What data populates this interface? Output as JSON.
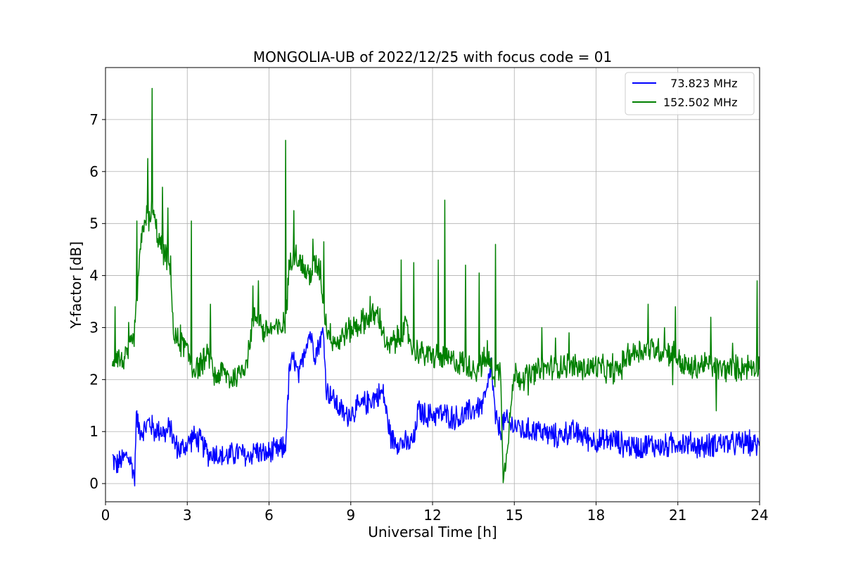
{
  "chart_data": {
    "type": "line",
    "title": "MONGOLIA-UB of 2022/12/25 with focus code = 01",
    "xlabel": "Universal Time [h]",
    "ylabel": "Y-factor [dB]",
    "xlim": [
      0,
      24
    ],
    "ylim": [
      -0.35,
      8.0
    ],
    "xticks": [
      0,
      3,
      6,
      9,
      12,
      15,
      18,
      21,
      24
    ],
    "yticks": [
      0,
      1,
      2,
      3,
      4,
      5,
      6,
      7
    ],
    "grid": true,
    "legend_position": "top-right",
    "series": [
      {
        "name": "  73.823 MHz",
        "color": "#0000ff",
        "x": [
          0.25,
          0.4,
          0.6,
          0.8,
          1.0,
          1.08,
          1.12,
          1.2,
          1.4,
          1.6,
          1.8,
          2.0,
          2.2,
          2.4,
          2.5,
          2.7,
          2.9,
          3.0,
          3.2,
          3.5,
          3.8,
          4.0,
          4.3,
          4.6,
          4.9,
          5.2,
          5.5,
          5.8,
          6.1,
          6.4,
          6.6,
          6.75,
          6.9,
          7.1,
          7.3,
          7.5,
          7.7,
          7.9,
          8.0,
          8.1,
          8.3,
          8.5,
          8.8,
          9.1,
          9.4,
          9.7,
          10.0,
          10.2,
          10.35,
          10.5,
          10.8,
          11.1,
          11.35,
          11.45,
          11.8,
          12.2,
          12.6,
          13.0,
          13.4,
          13.8,
          14.0,
          14.15,
          14.3,
          14.5,
          14.6,
          14.8,
          15.1,
          15.4,
          15.8,
          16.2,
          16.6,
          17.0,
          17.4,
          17.8,
          18.2,
          18.6,
          19.0,
          19.5,
          20.0,
          20.5,
          21.0,
          21.5,
          22.0,
          22.5,
          23.0,
          23.5,
          24.0
        ],
        "values": [
          0.5,
          0.35,
          0.45,
          0.55,
          0.3,
          0.05,
          1.35,
          1.1,
          1.0,
          1.2,
          1.0,
          1.05,
          0.95,
          1.1,
          0.8,
          0.65,
          0.7,
          0.75,
          0.9,
          0.8,
          0.55,
          0.6,
          0.5,
          0.55,
          0.6,
          0.5,
          0.65,
          0.55,
          0.6,
          0.65,
          0.7,
          2.2,
          2.4,
          2.0,
          2.6,
          2.9,
          2.5,
          2.8,
          2.9,
          1.8,
          1.7,
          1.5,
          1.3,
          1.4,
          1.5,
          1.6,
          1.7,
          1.75,
          1.2,
          0.85,
          0.8,
          0.75,
          0.85,
          1.4,
          1.3,
          1.35,
          1.3,
          1.25,
          1.4,
          1.5,
          1.75,
          2.3,
          1.25,
          1.0,
          1.2,
          1.15,
          1.1,
          1.0,
          1.05,
          0.95,
          0.9,
          1.0,
          0.95,
          0.85,
          0.8,
          0.85,
          0.75,
          0.7,
          0.75,
          0.7,
          0.8,
          0.75,
          0.7,
          0.8,
          0.75,
          0.8,
          0.7
        ]
      },
      {
        "name": "152.502 MHz",
        "color": "#008000",
        "x": [
          0.25,
          0.4,
          0.6,
          0.8,
          1.0,
          1.1,
          1.2,
          1.35,
          1.5,
          1.65,
          1.7,
          1.85,
          2.0,
          2.2,
          2.4,
          2.5,
          2.7,
          2.9,
          3.0,
          3.2,
          3.5,
          3.8,
          4.0,
          4.3,
          4.6,
          4.9,
          5.2,
          5.4,
          5.6,
          5.8,
          6.1,
          6.4,
          6.6,
          6.75,
          6.9,
          7.1,
          7.3,
          7.5,
          7.7,
          7.9,
          8.0,
          8.2,
          8.5,
          8.8,
          9.1,
          9.4,
          9.7,
          10.0,
          10.2,
          10.35,
          10.5,
          10.8,
          11.0,
          11.3,
          11.6,
          12.0,
          12.4,
          12.8,
          13.2,
          13.6,
          14.0,
          14.3,
          14.5,
          14.6,
          15.0,
          15.5,
          16.0,
          16.5,
          17.0,
          17.5,
          18.0,
          18.5,
          18.9,
          19.1,
          19.5,
          20.0,
          20.5,
          20.9,
          21.1,
          21.5,
          22.0,
          22.5,
          23.0,
          23.5,
          24.0
        ],
        "values": [
          2.4,
          2.5,
          2.35,
          2.45,
          2.7,
          3.1,
          4.0,
          4.8,
          5.2,
          5.0,
          5.3,
          4.9,
          4.6,
          4.4,
          4.1,
          2.8,
          2.7,
          2.65,
          2.55,
          2.2,
          2.3,
          2.45,
          2.05,
          2.15,
          2.0,
          2.1,
          2.4,
          3.1,
          3.3,
          2.9,
          3.0,
          2.95,
          3.1,
          4.2,
          4.5,
          4.3,
          4.1,
          4.0,
          4.2,
          4.1,
          3.3,
          2.9,
          2.7,
          2.9,
          3.0,
          3.1,
          3.2,
          3.25,
          2.9,
          2.55,
          2.7,
          2.8,
          3.0,
          2.6,
          2.5,
          2.45,
          2.4,
          2.35,
          2.3,
          2.2,
          2.4,
          2.1,
          2.2,
          0.05,
          2.1,
          2.05,
          2.2,
          2.25,
          2.3,
          2.2,
          2.25,
          2.15,
          2.2,
          2.45,
          2.55,
          2.6,
          2.55,
          2.5,
          2.3,
          2.2,
          2.3,
          2.2,
          2.2,
          2.25,
          2.3
        ],
        "spikes": [
          [
            0.35,
            3.4
          ],
          [
            0.85,
            3.1
          ],
          [
            1.15,
            5.05
          ],
          [
            1.55,
            6.25
          ],
          [
            1.72,
            7.6
          ],
          [
            2.1,
            5.7
          ],
          [
            2.3,
            5.3
          ],
          [
            2.75,
            3.05
          ],
          [
            3.15,
            5.05
          ],
          [
            3.85,
            3.45
          ],
          [
            5.4,
            3.8
          ],
          [
            5.6,
            3.9
          ],
          [
            6.6,
            6.6
          ],
          [
            6.9,
            5.25
          ],
          [
            7.6,
            4.7
          ],
          [
            8.0,
            4.65
          ],
          [
            9.7,
            3.6
          ],
          [
            10.85,
            4.3
          ],
          [
            11.3,
            4.25
          ],
          [
            12.2,
            4.3
          ],
          [
            12.45,
            5.45
          ],
          [
            13.2,
            4.2
          ],
          [
            13.7,
            4.05
          ],
          [
            14.0,
            2.75
          ],
          [
            14.3,
            4.6
          ],
          [
            15.5,
            2.5
          ],
          [
            16.0,
            3.0
          ],
          [
            16.5,
            2.8
          ],
          [
            17.0,
            2.9
          ],
          [
            18.6,
            2.5
          ],
          [
            19.9,
            3.45
          ],
          [
            20.5,
            3.0
          ],
          [
            20.9,
            3.4
          ],
          [
            22.2,
            3.2
          ],
          [
            23.0,
            2.7
          ],
          [
            23.9,
            3.9
          ]
        ],
        "dips": [
          [
            15.2,
            1.8
          ],
          [
            15.5,
            1.7
          ],
          [
            20.8,
            1.9
          ],
          [
            22.4,
            1.4
          ]
        ]
      }
    ]
  }
}
